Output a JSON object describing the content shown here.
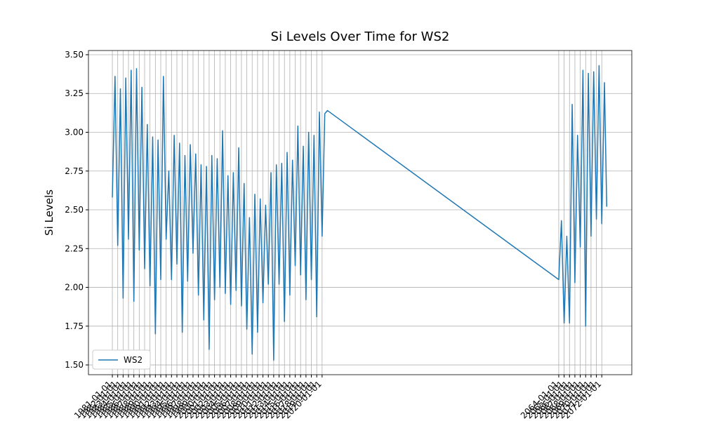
{
  "chart_data": {
    "type": "line",
    "title": "Si Levels Over Time for WS2",
    "ylabel": "Si Levels",
    "x": [
      "1981-01-01",
      "1981-07-01",
      "1982-01-01",
      "1982-07-01",
      "1983-01-01",
      "1983-07-01",
      "1984-01-01",
      "1984-07-01",
      "1985-01-01",
      "1985-07-01",
      "1986-01-01",
      "1986-07-01",
      "1987-01-01",
      "1987-07-01",
      "1988-01-01",
      "1988-07-01",
      "1989-01-01",
      "1989-07-01",
      "1990-01-01",
      "1990-07-01",
      "1991-01-01",
      "1991-07-01",
      "1992-01-01",
      "1992-07-01",
      "1993-01-01",
      "1993-07-01",
      "1994-01-01",
      "1994-07-01",
      "1995-01-01",
      "1995-07-01",
      "1996-01-01",
      "1996-07-01",
      "1997-01-01",
      "1997-07-01",
      "1998-01-01",
      "1998-07-01",
      "1999-01-01",
      "1999-07-01",
      "2000-01-01",
      "2000-07-01",
      "2001-01-01",
      "2001-07-01",
      "2002-01-01",
      "2002-07-01",
      "2003-01-01",
      "2003-07-01",
      "2004-01-01",
      "2004-07-01",
      "2005-01-01",
      "2005-07-01",
      "2006-01-01",
      "2006-07-01",
      "2007-01-01",
      "2007-07-01",
      "2008-01-01",
      "2008-07-01",
      "2009-01-01",
      "2009-07-01",
      "2010-01-01",
      "2010-07-01",
      "2011-01-01",
      "2011-07-01",
      "2012-01-01",
      "2012-07-01",
      "2013-01-01",
      "2013-07-01",
      "2014-01-01",
      "2014-07-01",
      "2015-01-01",
      "2015-07-01",
      "2016-01-01",
      "2016-07-01",
      "2017-01-01",
      "2017-07-01",
      "2018-01-01",
      "2018-07-01",
      "2019-01-01",
      "2019-07-01",
      "2020-01-01",
      "2020-07-01",
      "2021-01-01",
      "2064-01-01",
      "2064-07-01",
      "2065-01-01",
      "2065-07-01",
      "2066-01-01",
      "2066-07-01",
      "2067-01-01",
      "2067-07-01",
      "2068-01-01",
      "2068-07-01",
      "2069-01-01",
      "2069-07-01",
      "2070-01-01",
      "2070-07-01",
      "2071-01-01",
      "2071-07-01",
      "2072-01-01",
      "2072-07-01",
      "2072-12-01"
    ],
    "series": [
      {
        "name": "WS2",
        "color": "#1f77b4",
        "values": [
          2.58,
          3.36,
          2.27,
          3.28,
          1.93,
          3.35,
          2.31,
          3.4,
          1.91,
          3.41,
          2.24,
          3.29,
          2.12,
          3.05,
          2.01,
          2.97,
          1.7,
          2.95,
          2.05,
          3.36,
          2.31,
          2.75,
          2.05,
          2.98,
          2.15,
          2.93,
          1.71,
          2.85,
          2.04,
          2.92,
          2.22,
          2.86,
          1.95,
          2.79,
          1.79,
          2.78,
          1.6,
          2.85,
          1.92,
          2.83,
          2.0,
          3.01,
          1.96,
          2.72,
          1.89,
          2.74,
          1.98,
          2.9,
          1.88,
          2.67,
          1.73,
          2.45,
          1.57,
          2.6,
          1.71,
          2.57,
          1.9,
          2.53,
          2.02,
          2.74,
          1.53,
          2.79,
          2.02,
          2.8,
          1.78,
          2.87,
          1.95,
          2.82,
          2.14,
          3.04,
          2.08,
          2.91,
          1.92,
          3.0,
          2.05,
          2.98,
          1.81,
          3.13,
          2.33,
          3.12,
          3.14,
          2.05,
          2.43,
          1.77,
          2.33,
          1.77,
          3.18,
          2.03,
          2.98,
          2.26,
          3.4,
          1.75,
          3.38,
          2.33,
          3.39,
          2.44,
          3.43,
          2.41,
          3.32,
          2.52
        ]
      }
    ],
    "xlim": [
      "1976-07-23",
      "2077-08-01"
    ],
    "xticks": [
      "1981-01-01",
      "1982-01-01",
      "1983-01-01",
      "1984-01-01",
      "1985-01-01",
      "1986-01-01",
      "1987-01-01",
      "1988-01-01",
      "1989-01-01",
      "1990-01-01",
      "1991-01-01",
      "1992-01-01",
      "1993-01-01",
      "1994-01-01",
      "1995-01-01",
      "1996-01-01",
      "1997-01-01",
      "1998-01-01",
      "1999-01-01",
      "2000-01-01",
      "2001-01-01",
      "2002-01-01",
      "2003-01-01",
      "2004-01-01",
      "2005-01-01",
      "2006-01-01",
      "2007-01-01",
      "2008-01-01",
      "2009-01-01",
      "2010-01-01",
      "2011-01-01",
      "2012-01-01",
      "2013-01-01",
      "2014-01-01",
      "2015-01-01",
      "2016-01-01",
      "2017-01-01",
      "2018-01-01",
      "2019-01-01",
      "2020-01-01",
      "2064-01-01",
      "2065-01-01",
      "2066-01-01",
      "2067-01-01",
      "2068-01-01",
      "2069-01-01",
      "2070-01-01",
      "2071-01-01",
      "2072-01-01"
    ],
    "ylim": [
      1.437,
      3.527
    ],
    "yticks": [
      {
        "value": 1.5,
        "label": "1.50"
      },
      {
        "value": 1.75,
        "label": "1.75"
      },
      {
        "value": 2.0,
        "label": "2.00"
      },
      {
        "value": 2.25,
        "label": "2.25"
      },
      {
        "value": 2.5,
        "label": "2.50"
      },
      {
        "value": 2.75,
        "label": "2.75"
      },
      {
        "value": 3.0,
        "label": "3.00"
      },
      {
        "value": 3.25,
        "label": "3.25"
      },
      {
        "value": 3.5,
        "label": "3.50"
      }
    ],
    "grid": true,
    "legend": "lower left"
  }
}
